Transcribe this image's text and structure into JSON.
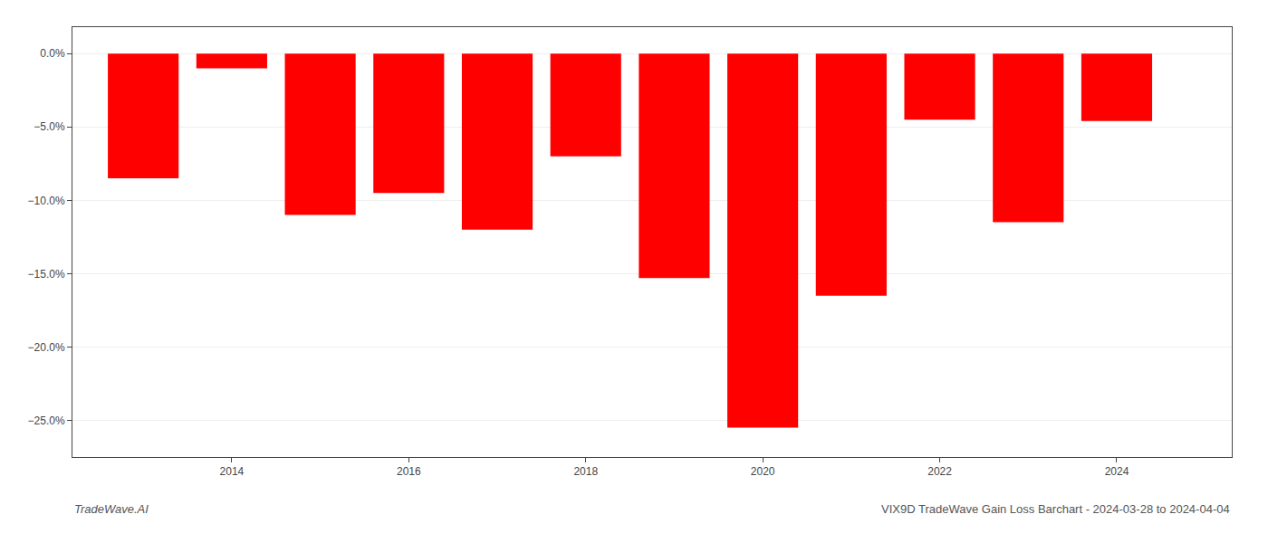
{
  "chart_data": {
    "type": "bar",
    "x": [
      2013,
      2014,
      2015,
      2016,
      2017,
      2018,
      2019,
      2020,
      2021,
      2022,
      2023,
      2024
    ],
    "values": [
      -8.5,
      -1.0,
      -11.0,
      -9.5,
      -12.0,
      -7.0,
      -15.3,
      -25.5,
      -16.5,
      -4.5,
      -11.5,
      -4.6
    ],
    "color": "#ff0000",
    "xlim": [
      2012.2,
      2025.3
    ],
    "xticks": [
      2014,
      2016,
      2018,
      2020,
      2022,
      2024
    ],
    "ylim": [
      -27.5,
      1.8
    ],
    "yticks": [
      {
        "value": 0.0,
        "label": "0.0%"
      },
      {
        "value": -5.0,
        "label": "−5.0%"
      },
      {
        "value": -10.0,
        "label": "−10.0%"
      },
      {
        "value": -15.0,
        "label": "−15.0%"
      },
      {
        "value": -20.0,
        "label": "−20.0%"
      },
      {
        "value": -25.0,
        "label": "−25.0%"
      }
    ],
    "grid": true,
    "annotations": [
      "TradeWave.AI",
      "VIX9D TradeWave Gain Loss Barchart - 2024-03-28 to 2024-04-04"
    ]
  }
}
